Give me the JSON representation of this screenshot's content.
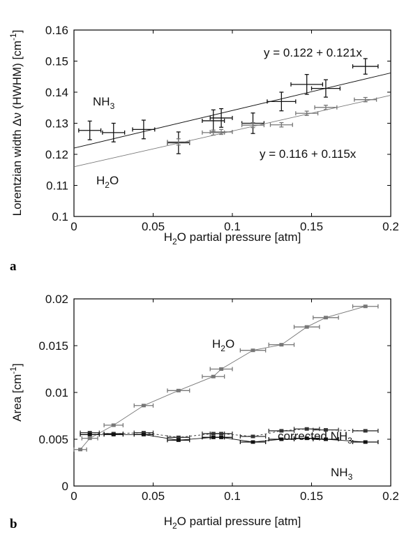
{
  "chart_data": [
    {
      "panel_label": "a",
      "type": "scatter",
      "xlabel": "H2O partial pressure [atm]",
      "ylabel": "Lorentzian width Δν (HWHM) [cm-1]",
      "xlim": [
        0,
        0.2
      ],
      "ylim": [
        0.1,
        0.16
      ],
      "x_ticks": [
        "0",
        "0.05",
        "0.1",
        "0.15",
        "0.2"
      ],
      "y_ticks": [
        "0.1",
        "0.11",
        "0.12",
        "0.13",
        "0.14",
        "0.15",
        "0.16"
      ],
      "grid": false,
      "series": [
        {
          "name": "NH3",
          "color": "#111111",
          "points": [
            {
              "x": 0.01,
              "y": 0.1277,
              "xerr": 0.007,
              "yerr": 0.003
            },
            {
              "x": 0.025,
              "y": 0.127,
              "xerr": 0.007,
              "yerr": 0.003
            },
            {
              "x": 0.044,
              "y": 0.128,
              "xerr": 0.007,
              "yerr": 0.003
            },
            {
              "x": 0.066,
              "y": 0.1237,
              "xerr": 0.007,
              "yerr": 0.0035
            },
            {
              "x": 0.088,
              "y": 0.1308,
              "xerr": 0.007,
              "yerr": 0.0035
            },
            {
              "x": 0.093,
              "y": 0.1317,
              "xerr": 0.007,
              "yerr": 0.003
            },
            {
              "x": 0.113,
              "y": 0.13,
              "xerr": 0.007,
              "yerr": 0.0033
            },
            {
              "x": 0.131,
              "y": 0.137,
              "xerr": 0.009,
              "yerr": 0.003
            },
            {
              "x": 0.147,
              "y": 0.1425,
              "xerr": 0.01,
              "yerr": 0.0032
            },
            {
              "x": 0.159,
              "y": 0.1412,
              "xerr": 0.009,
              "yerr": 0.0028
            },
            {
              "x": 0.184,
              "y": 0.1483,
              "xerr": 0.008,
              "yerr": 0.0025
            }
          ],
          "fit": {
            "intercept": 0.122,
            "slope": 0.121,
            "label": "y = 0.122 + 0.121x"
          }
        },
        {
          "name": "H2O",
          "color": "#777777",
          "points": [
            {
              "x": 0.066,
              "y": 0.124,
              "xerr": 0.007,
              "yerr": 0.001
            },
            {
              "x": 0.088,
              "y": 0.127,
              "xerr": 0.007,
              "yerr": 0.0008
            },
            {
              "x": 0.093,
              "y": 0.1272,
              "xerr": 0.007,
              "yerr": 0.0008
            },
            {
              "x": 0.113,
              "y": 0.1294,
              "xerr": 0.007,
              "yerr": 0.0008
            },
            {
              "x": 0.131,
              "y": 0.1295,
              "xerr": 0.007,
              "yerr": 0.0007
            },
            {
              "x": 0.147,
              "y": 0.1332,
              "xerr": 0.007,
              "yerr": 0.0007
            },
            {
              "x": 0.159,
              "y": 0.1351,
              "xerr": 0.007,
              "yerr": 0.0007
            },
            {
              "x": 0.184,
              "y": 0.1376,
              "xerr": 0.007,
              "yerr": 0.0007
            }
          ],
          "fit": {
            "intercept": 0.116,
            "slope": 0.115,
            "label": "y = 0.116 + 0.115x"
          }
        }
      ]
    },
    {
      "panel_label": "b",
      "type": "scatter",
      "xlabel": "H2O partial pressure [atm]",
      "ylabel": "Area [cm-1]",
      "xlim": [
        0,
        0.2
      ],
      "ylim": [
        0,
        0.02
      ],
      "x_ticks": [
        "0",
        "0.05",
        "0.1",
        "0.15",
        "0.2"
      ],
      "y_ticks": [
        "0",
        "0.005",
        "0.01",
        "0.015",
        "0.02"
      ],
      "grid": false,
      "series": [
        {
          "name": "H2O",
          "color": "#777777",
          "line": "solid",
          "points": [
            {
              "x": 0.004,
              "y": 0.0039,
              "xerr": 0.004
            },
            {
              "x": 0.01,
              "y": 0.0051,
              "xerr": 0.005
            },
            {
              "x": 0.025,
              "y": 0.0065,
              "xerr": 0.006
            },
            {
              "x": 0.044,
              "y": 0.0086,
              "xerr": 0.006
            },
            {
              "x": 0.066,
              "y": 0.0102,
              "xerr": 0.007
            },
            {
              "x": 0.088,
              "y": 0.0117,
              "xerr": 0.007
            },
            {
              "x": 0.093,
              "y": 0.0125,
              "xerr": 0.007
            },
            {
              "x": 0.113,
              "y": 0.0145,
              "xerr": 0.008
            },
            {
              "x": 0.131,
              "y": 0.0151,
              "xerr": 0.008
            },
            {
              "x": 0.147,
              "y": 0.017,
              "xerr": 0.008
            },
            {
              "x": 0.159,
              "y": 0.018,
              "xerr": 0.008
            },
            {
              "x": 0.184,
              "y": 0.0192,
              "xerr": 0.008
            }
          ]
        },
        {
          "name": "corrected NH3",
          "color": "#333333",
          "line": "dashed",
          "points": [
            {
              "x": 0.01,
              "y": 0.0057,
              "xerr": 0.006
            },
            {
              "x": 0.025,
              "y": 0.0056,
              "xerr": 0.006
            },
            {
              "x": 0.044,
              "y": 0.0057,
              "xerr": 0.006
            },
            {
              "x": 0.066,
              "y": 0.0052,
              "xerr": 0.007
            },
            {
              "x": 0.088,
              "y": 0.0056,
              "xerr": 0.007
            },
            {
              "x": 0.093,
              "y": 0.0056,
              "xerr": 0.007
            },
            {
              "x": 0.113,
              "y": 0.0053,
              "xerr": 0.008
            },
            {
              "x": 0.131,
              "y": 0.0059,
              "xerr": 0.008
            },
            {
              "x": 0.147,
              "y": 0.0061,
              "xerr": 0.008
            },
            {
              "x": 0.159,
              "y": 0.006,
              "xerr": 0.008
            },
            {
              "x": 0.184,
              "y": 0.0059,
              "xerr": 0.008
            }
          ]
        },
        {
          "name": "NH3",
          "color": "#111111",
          "line": "solid",
          "points": [
            {
              "x": 0.01,
              "y": 0.0055,
              "xerr": 0.006
            },
            {
              "x": 0.025,
              "y": 0.0055,
              "xerr": 0.006
            },
            {
              "x": 0.044,
              "y": 0.0055,
              "xerr": 0.006
            },
            {
              "x": 0.066,
              "y": 0.0049,
              "xerr": 0.007
            },
            {
              "x": 0.088,
              "y": 0.0052,
              "xerr": 0.007
            },
            {
              "x": 0.093,
              "y": 0.0052,
              "xerr": 0.007
            },
            {
              "x": 0.113,
              "y": 0.0047,
              "xerr": 0.008
            },
            {
              "x": 0.131,
              "y": 0.005,
              "xerr": 0.008
            },
            {
              "x": 0.147,
              "y": 0.0051,
              "xerr": 0.008
            },
            {
              "x": 0.159,
              "y": 0.005,
              "xerr": 0.008
            },
            {
              "x": 0.184,
              "y": 0.0047,
              "xerr": 0.008
            }
          ]
        }
      ]
    }
  ]
}
